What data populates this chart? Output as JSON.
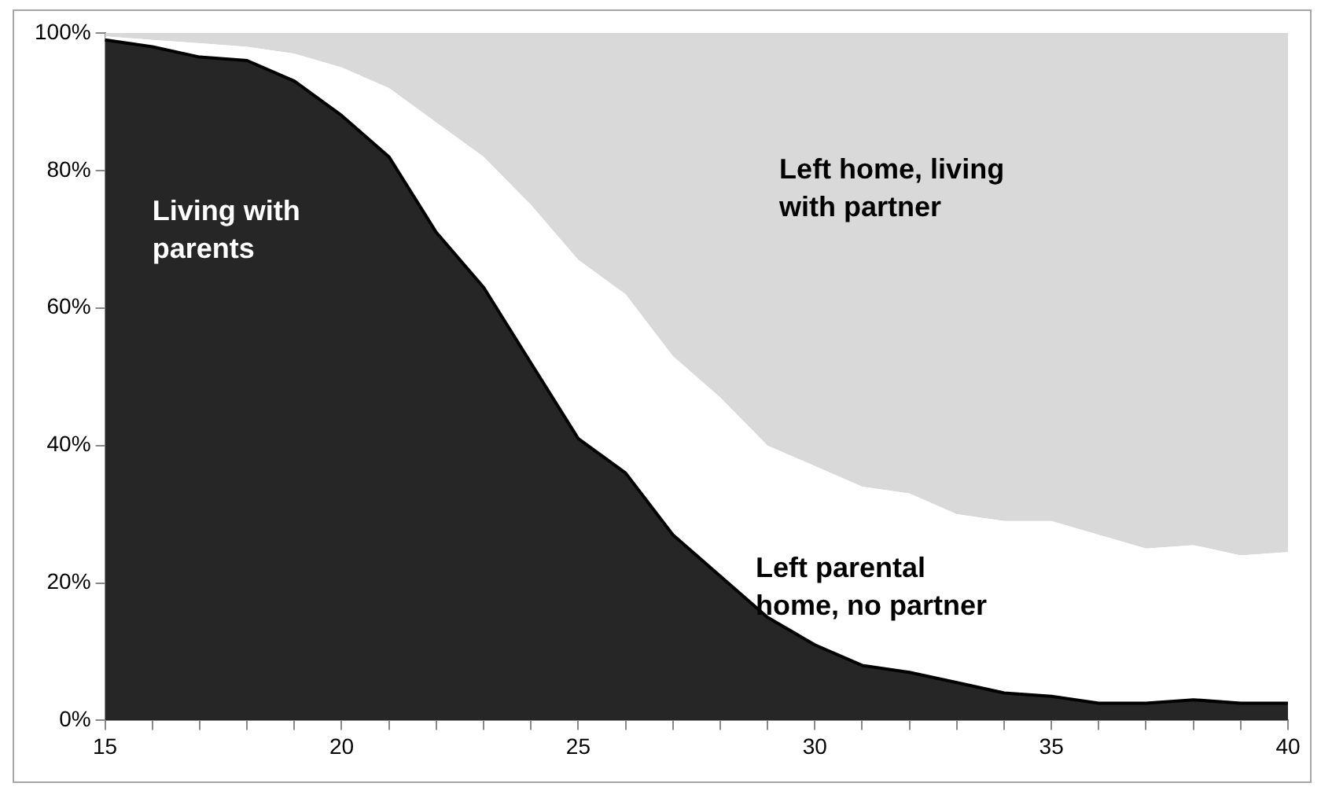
{
  "chart_data": {
    "type": "area",
    "stacked": true,
    "legend": false,
    "grid": false,
    "marker": "none",
    "x": [
      15,
      16,
      17,
      18,
      19,
      20,
      21,
      22,
      23,
      24,
      25,
      26,
      27,
      28,
      29,
      30,
      31,
      32,
      33,
      34,
      35,
      36,
      37,
      38,
      39,
      40
    ],
    "xlim": [
      15,
      40
    ],
    "xticks": [
      15,
      {
        "value": 16,
        "label": null
      },
      {
        "value": 17,
        "label": null
      },
      {
        "value": 18,
        "label": null
      },
      {
        "value": 19,
        "label": null
      },
      20,
      {
        "value": 21,
        "label": null
      },
      {
        "value": 22,
        "label": null
      },
      {
        "value": 23,
        "label": null
      },
      {
        "value": 24,
        "label": null
      },
      25,
      {
        "value": 26,
        "label": null
      },
      {
        "value": 27,
        "label": null
      },
      {
        "value": 28,
        "label": null
      },
      {
        "value": 29,
        "label": null
      },
      30,
      {
        "value": 31,
        "label": null
      },
      {
        "value": 32,
        "label": null
      },
      {
        "value": 33,
        "label": null
      },
      {
        "value": 34,
        "label": null
      },
      35,
      {
        "value": 36,
        "label": null
      },
      {
        "value": 37,
        "label": null
      },
      {
        "value": 38,
        "label": null
      },
      {
        "value": 39,
        "label": null
      },
      40
    ],
    "ylim": [
      0,
      100
    ],
    "yticks": [
      {
        "value": 0,
        "label": "0%"
      },
      {
        "value": 20,
        "label": "20%"
      },
      {
        "value": 40,
        "label": "40%"
      },
      {
        "value": 60,
        "label": "60%"
      },
      {
        "value": 80,
        "label": "80%"
      },
      {
        "value": 100,
        "label": "100%"
      }
    ],
    "series": [
      {
        "name": "Living with parents",
        "color": "#262626",
        "values": [
          99,
          98,
          96.5,
          96,
          93,
          88,
          82,
          71,
          63,
          52,
          41,
          36,
          27,
          21,
          15,
          11,
          8,
          7,
          5.5,
          4,
          3.5,
          2.5,
          2.5,
          3,
          2.5,
          2.5
        ]
      },
      {
        "name": "Left parental home, no partner",
        "color": "#ffffff",
        "values": [
          0.5,
          1,
          2,
          2,
          4,
          7,
          10,
          16,
          19,
          23,
          26,
          26,
          26,
          26,
          25,
          26,
          26,
          26,
          24.5,
          25,
          25.5,
          24.5,
          22.5,
          22.5,
          21.5,
          22
        ]
      },
      {
        "name": "Left home, living with partner",
        "color": "#d9d9d9",
        "values": [
          0.5,
          1,
          1.5,
          2,
          3,
          5,
          8,
          13,
          18,
          25,
          33,
          38,
          47,
          53,
          60,
          63,
          66,
          67,
          70,
          71,
          71,
          73,
          75,
          74.5,
          76,
          75.5
        ]
      }
    ]
  }
}
